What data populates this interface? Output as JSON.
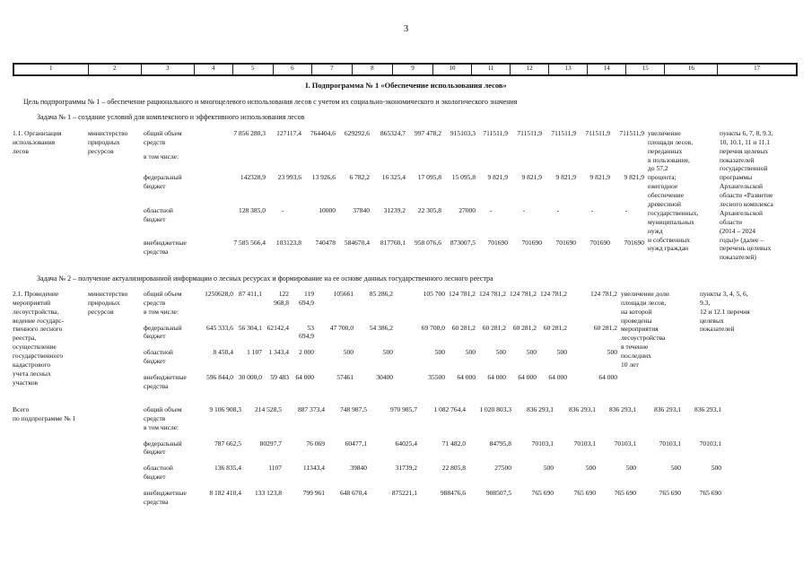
{
  "page": {
    "number": "3"
  },
  "header_row": {
    "columns": [
      "1",
      "2",
      "3",
      "4",
      "5",
      "6",
      "7",
      "8",
      "9",
      "10",
      "11",
      "12",
      "13",
      "14",
      "15",
      "16",
      "17"
    ]
  },
  "title": "I. Подпрограмма № 1 «Обеспечение использования лесов»",
  "goal": "Цель подпрограммы № 1 – обеспечение рационального и многоцелевого использования лесов с учетом их социально-экономического и экологического значения",
  "task1": "Задача № 1 – создание условий для комплексного и эффективного использования лесов",
  "task2": "Задача № 2 – получение актуализированной информации о лесных ресурсах и формирование на ее основе данных государственного лесного реестра",
  "sections": [
    {
      "name": "1.1. Организация\nиспользования\nлесов",
      "executor": "министерство\nприродных\nресурсов",
      "funding_rows": [
        {
          "label": "общий объем\nсредств",
          "values": [
            "7 856 280,3",
            "127117,4",
            "764404,6",
            "629292,6",
            "865324,7",
            "997 478,2",
            "915103,3",
            "711511,9",
            "711511,9",
            "711511,9",
            "711511,9",
            "711511,9"
          ]
        },
        {
          "label": "в том числе:",
          "values": []
        },
        {
          "label": "федеральный\nбюджет",
          "values": [
            "142328,9",
            "23 993,6",
            "13 926,6",
            "6 782,2",
            "16 325,4",
            "17 095,8",
            "15 095,8",
            "9 821,9",
            "9 821,9",
            "9 821,9",
            "9 821,9",
            "9 821,9"
          ]
        },
        {
          "label": "областной\nбюджет",
          "values": [
            "128 385,0",
            "-",
            "10000",
            "37840",
            "31239,2",
            "22 305,8",
            "27000",
            "-",
            "-",
            "-",
            "-",
            "-"
          ]
        },
        {
          "label": "внебюджетные\nсредства",
          "values": [
            "7 585 566,4",
            "103123,8",
            "740478",
            "584670,4",
            "817760,1",
            "958 076,6",
            "873007,5",
            "701690",
            "701690",
            "701690",
            "701690",
            "701690"
          ]
        }
      ],
      "indicator": "увеличение\nплощади лесов,\nпереданных\nв пользование,\nдо 57,2\nпроцента;\nежегодное\nобеспечение\nдревесиной\nгосударственных,\nмуниципальных\nнужд\nи собственных\nнужд граждан",
      "reference": "пункты 6, 7, 8, 9.3,\n10, 10.1, 11 и 11.1\nперечня целевых\nпоказателей\nгосударственной\nпрограммы\nАрхангельской\nобласти «Развитие\nлесного комплекса\nАрхангельской\nобласти\n(2014 – 2024\nгоды)» (далее –\nперечень целевых\nпоказателей)"
    },
    {
      "name": "2.1. Проведение\nмероприятий\nлесоустройства,\nведение государс-\nтвенного лесного\nреестра,\nосуществление\nгосударственного\nкадастрового\nучета лесных\nучастков",
      "executor": "министерство\nприродных\nресурсов",
      "funding_rows": [
        {
          "label": "общий объем\nсредств",
          "values": [
            "1250628,0",
            "87 411,1",
            "122 968,8",
            "119 694,9",
            "105661",
            "85 286,2",
            "105 700",
            "124 781,2",
            "124 781,2",
            "124 781,2",
            "124 781,2",
            "124 781,2"
          ]
        },
        {
          "label": "в том числе:",
          "values": []
        },
        {
          "label": "федеральный\nбюджет",
          "values": [
            "645 333,6",
            "56 304,1",
            "62142,4",
            "53 694,9",
            "47 700,0",
            "54 386,2",
            "69 700,0",
            "60 281,2",
            "60 281,2",
            "60 281,2",
            "60 281,2",
            "60 281,2"
          ]
        },
        {
          "label": "областной\nбюджет",
          "values": [
            "8 450,4",
            "1 107",
            "1 343,4",
            "2 000",
            "500",
            "500",
            "500",
            "500",
            "500",
            "500",
            "500",
            "500"
          ]
        },
        {
          "label": "внебюджетные\nсредства",
          "values": [
            "596 844,0",
            "30 000,0",
            "59 483",
            "64 000",
            "57461",
            "30400",
            "35500",
            "64 000",
            "64 000",
            "64 000",
            "64 000",
            "64 000"
          ]
        }
      ],
      "indicator": "увеличение доли\nплощади лесов,\nна которой\nпроведены\nмероприятия\nлесоустройства\nв течение\nпоследних\n10 лет",
      "reference": "пункты 3, 4, 5, 6,\n9.3,\n12 и 12.1 перечня\nцелевых\nпоказателей"
    },
    {
      "name": "Всего\nпо подпрограмме № 1",
      "executor": null,
      "funding_rows": [
        {
          "label": "общий объем\nсредств",
          "values": [
            "9 106 908,3",
            "214 528,5",
            "887 373,4",
            "748 987,5",
            "970 985,7",
            "1 082 764,4",
            "1 020 803,3",
            "836 293,1",
            "836 293,1",
            "836 293,1",
            "836 293,1",
            "836 293,1"
          ]
        },
        {
          "label": "в том числе:",
          "values": []
        },
        {
          "label": "федеральный\nбюджет",
          "values": [
            "787 662,5",
            "80297,7",
            "76 069",
            "60477,1",
            "64025,4",
            "71 482,0",
            "84795,8",
            "70103,1",
            "70103,1",
            "70103,1",
            "70103,1",
            "70103,1"
          ]
        },
        {
          "label": "областной\nбюджет",
          "values": [
            "136 835,4",
            "1107",
            "11343,4",
            "39840",
            "31739,2",
            "22 805,8",
            "27500",
            "500",
            "500",
            "500",
            "500",
            "500"
          ]
        },
        {
          "label": "внебюджетные\nсредства",
          "values": [
            "8 182 410,4",
            "133 123,8",
            "799 961",
            "648 670,4",
            "875221,1",
            "988476,6",
            "908507,5",
            "765 690",
            "765 690",
            "765 690",
            "765 690",
            "765 690"
          ]
        }
      ],
      "indicator": null,
      "reference": null
    }
  ]
}
